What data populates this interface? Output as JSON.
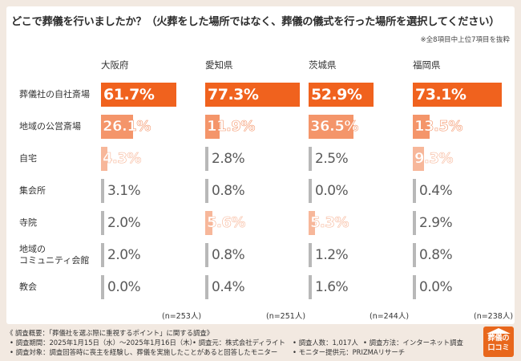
{
  "title": "どこで葬儀を行いましたか？（火葬をした場所ではなく、葬儀の儀式を行った場所を選択してください）",
  "note": "※全8項目中上位7項目を抜粋",
  "chart_data": {
    "type": "bar",
    "regions": [
      "大阪府",
      "愛知県",
      "茨城県",
      "福岡県"
    ],
    "categories": [
      "葬儀社の自社斎場",
      "地域の公営斎場",
      "自宅",
      "集会所",
      "寺院",
      "地域の\nコミュニティ会館",
      "教会"
    ],
    "series": [
      {
        "name": "大阪府",
        "values": [
          61.7,
          26.1,
          4.3,
          3.1,
          2.0,
          2.0,
          0.0
        ],
        "n": "(n=253人)"
      },
      {
        "name": "愛知県",
        "values": [
          77.3,
          11.9,
          2.8,
          0.8,
          5.6,
          0.8,
          0.4
        ],
        "n": "(n=251人)"
      },
      {
        "name": "茨城県",
        "values": [
          52.9,
          36.5,
          2.5,
          0.0,
          5.3,
          1.2,
          1.6
        ],
        "n": "(n=244人)"
      },
      {
        "name": "福岡県",
        "values": [
          73.1,
          13.5,
          9.3,
          0.4,
          2.9,
          0.8,
          0.0
        ],
        "n": "(n=238人)"
      }
    ],
    "value_format": "%",
    "colors": {
      "high": "#f0621e",
      "medium": "#f4956a",
      "low": "#f7b79a",
      "minimal": "#b8b8b8"
    }
  },
  "summary": {
    "line1": "《 調査概要：「葬儀社を選ぶ際に重視するポイント」に関する調査》",
    "line2a": "• 調査期間：2025年1月15日（水）〜2025年1月16日（木）",
    "line2b": "• 調査元：株式会社ディライト",
    "line2c": "• 調査人数：1,017人",
    "line2d": "• 調査方法：インターネット調査",
    "line3a": "• 調査対象：調査回答時に喪主を経験し、葬儀を実施したことがあると回答したモニター",
    "line3b": "• モニター提供元：PRIZMAリサーチ"
  },
  "logo": {
    "line1": "葬儀の",
    "line2": "口コミ"
  }
}
